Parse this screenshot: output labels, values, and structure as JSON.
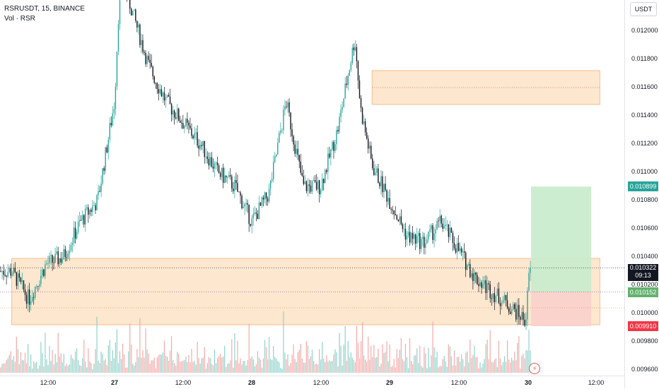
{
  "legend": {
    "symbol_line": "RSRUSDT, 15, BINANCE",
    "indicator_line": "Vol · RSR"
  },
  "price_axis": {
    "currency": "USDT",
    "ticks": [
      "0.012000",
      "0.011800",
      "0.011600",
      "0.011400",
      "0.011200",
      "0.011000",
      "0.010800",
      "0.010600",
      "0.010400",
      "0.010200",
      "0.010000",
      "0.009800",
      "0.009600"
    ]
  },
  "price_labels": {
    "target": {
      "value": "0.010899",
      "color": "#26a69a"
    },
    "current": {
      "value": "0.010322",
      "countdown": "09:13",
      "color": "#131722"
    },
    "entry": {
      "value": "0.010152",
      "color": "#62b26e"
    },
    "stop": {
      "value": "0.009910",
      "color": "#f23645"
    }
  },
  "time_axis": {
    "ticks": [
      {
        "label": "12:00",
        "bold": false
      },
      {
        "label": "27",
        "bold": true
      },
      {
        "label": "12:00",
        "bold": false
      },
      {
        "label": "28",
        "bold": true
      },
      {
        "label": "12:00",
        "bold": false
      },
      {
        "label": "29",
        "bold": true
      },
      {
        "label": "12:00",
        "bold": false
      },
      {
        "label": "30",
        "bold": true
      },
      {
        "label": "12:00",
        "bold": false
      }
    ]
  },
  "chart_data": {
    "type": "candlestick",
    "symbol": "RSRUSDT",
    "interval": "15",
    "exchange": "BINANCE",
    "y_range": [
      0.00955,
      0.01225
    ],
    "price_path": [
      {
        "t": "26 06:00",
        "p": 0.0103
      },
      {
        "t": "26 09:00",
        "p": 0.0101
      },
      {
        "t": "26 12:00",
        "p": 0.01035
      },
      {
        "t": "26 15:00",
        "p": 0.0104
      },
      {
        "t": "26 18:00",
        "p": 0.01065
      },
      {
        "t": "26 21:00",
        "p": 0.0108
      },
      {
        "t": "27 00:00",
        "p": 0.0115
      },
      {
        "t": "27 01:00",
        "p": 0.0124
      },
      {
        "t": "27 03:00",
        "p": 0.01215
      },
      {
        "t": "27 06:00",
        "p": 0.01175
      },
      {
        "t": "27 09:00",
        "p": 0.0115
      },
      {
        "t": "27 12:00",
        "p": 0.01135
      },
      {
        "t": "27 15:00",
        "p": 0.0112
      },
      {
        "t": "27 18:00",
        "p": 0.011
      },
      {
        "t": "27 21:00",
        "p": 0.0109
      },
      {
        "t": "28 00:00",
        "p": 0.01065
      },
      {
        "t": "28 03:00",
        "p": 0.01085
      },
      {
        "t": "28 06:00",
        "p": 0.0115
      },
      {
        "t": "28 09:00",
        "p": 0.0109
      },
      {
        "t": "28 12:00",
        "p": 0.0109
      },
      {
        "t": "28 15:00",
        "p": 0.0113
      },
      {
        "t": "28 18:00",
        "p": 0.01195
      },
      {
        "t": "28 19:00",
        "p": 0.01145
      },
      {
        "t": "28 21:00",
        "p": 0.01105
      },
      {
        "t": "29 00:00",
        "p": 0.0108
      },
      {
        "t": "29 03:00",
        "p": 0.01055
      },
      {
        "t": "29 06:00",
        "p": 0.0105
      },
      {
        "t": "29 09:00",
        "p": 0.01065
      },
      {
        "t": "29 12:00",
        "p": 0.01045
      },
      {
        "t": "29 15:00",
        "p": 0.01025
      },
      {
        "t": "29 18:00",
        "p": 0.01015
      },
      {
        "t": "29 21:00",
        "p": 0.01005
      },
      {
        "t": "29 23:45",
        "p": 0.00995
      },
      {
        "t": "30 00:15",
        "p": 0.01032
      }
    ],
    "zones": [
      {
        "name": "supply-zone",
        "top": 0.01172,
        "bottom": 0.01148,
        "mid": 0.0116,
        "from": "28 21:00",
        "to": "30 12:30"
      },
      {
        "name": "demand-zone",
        "top": 0.01039,
        "bottom": 0.00992,
        "from": "26 06:00",
        "to": "30 12:30"
      }
    ],
    "lines": [
      {
        "name": "current-price-line",
        "price": 0.010322
      },
      {
        "name": "entry-line",
        "price": 0.010152
      },
      {
        "name": "demand-mid-line",
        "price": 0.01004
      }
    ],
    "position": {
      "type": "long",
      "entry": 0.010152,
      "target": 0.010899,
      "stop": 0.00991,
      "from": "30 00:30",
      "to": "30 11:00"
    }
  },
  "colors": {
    "up": "#26a69a",
    "down": "#131722",
    "zone_fill": "#fde7cf",
    "zone_border": "#f0b27a",
    "profit": "#c8ebcc",
    "loss": "#fbd0cc",
    "vol_up": "#8fd3cb",
    "vol_down": "#f7a9a8"
  }
}
